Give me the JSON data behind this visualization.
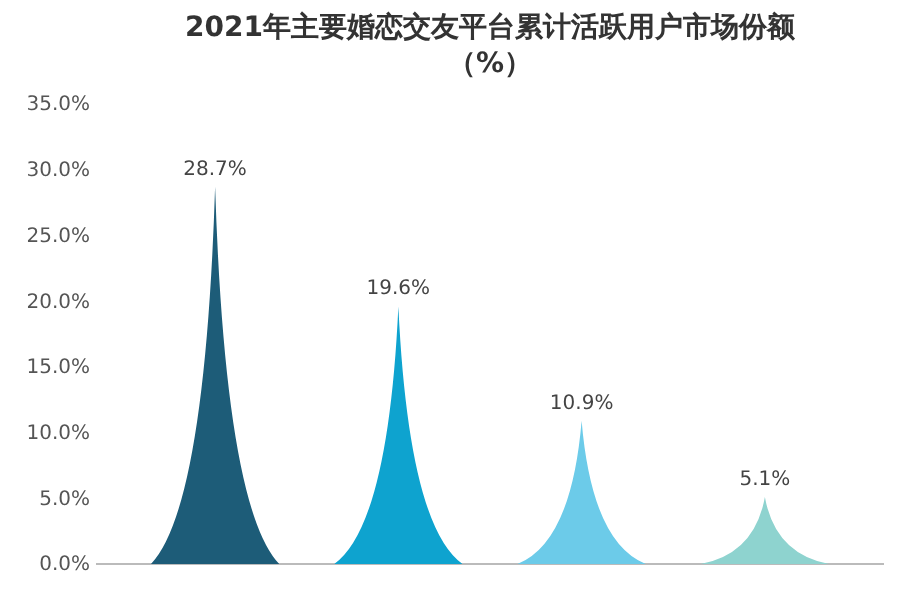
{
  "chart_data": {
    "type": "bar",
    "title": "2021年主要婚恋交友平台累计活跃用户市场份额（%）",
    "categories": [
      null,
      null,
      null,
      null
    ],
    "values": [
      28.7,
      19.6,
      10.9,
      5.1
    ],
    "value_labels": [
      "28.7%",
      "19.6%",
      "10.9%",
      "5.1%"
    ],
    "colors": [
      "#1d5c78",
      "#0ea3cf",
      "#6ccbe9",
      "#8ed3cf"
    ],
    "ylim": [
      0,
      35
    ],
    "yticks": [
      {
        "value": 0,
        "label": "0.0%"
      },
      {
        "value": 5,
        "label": "5.0%"
      },
      {
        "value": 10,
        "label": "10.0%"
      },
      {
        "value": 15,
        "label": "15.0%"
      },
      {
        "value": 20,
        "label": "20.0%"
      },
      {
        "value": 25,
        "label": "25.0%"
      },
      {
        "value": 30,
        "label": "30.0%"
      },
      {
        "value": 35,
        "label": "35.0%"
      }
    ],
    "grid": false
  }
}
